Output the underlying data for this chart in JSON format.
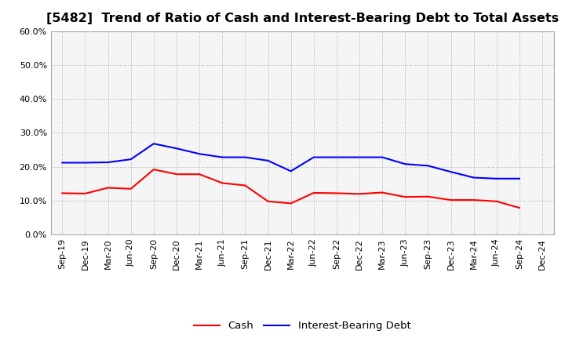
{
  "title": "[5482]  Trend of Ratio of Cash and Interest-Bearing Debt to Total Assets",
  "x_labels": [
    "Sep-19",
    "Dec-19",
    "Mar-20",
    "Jun-20",
    "Sep-20",
    "Dec-20",
    "Mar-21",
    "Jun-21",
    "Sep-21",
    "Dec-21",
    "Mar-22",
    "Jun-22",
    "Sep-22",
    "Dec-22",
    "Mar-23",
    "Jun-23",
    "Sep-23",
    "Dec-23",
    "Mar-24",
    "Jun-24",
    "Sep-24",
    "Dec-24"
  ],
  "cash": [
    0.122,
    0.121,
    0.138,
    0.135,
    0.192,
    0.178,
    0.178,
    0.152,
    0.145,
    0.098,
    0.092,
    0.123,
    0.122,
    0.12,
    0.124,
    0.111,
    0.112,
    0.102,
    0.102,
    0.098,
    0.079,
    null
  ],
  "ibd": [
    0.212,
    0.212,
    0.213,
    0.222,
    0.268,
    0.254,
    0.238,
    0.228,
    0.228,
    0.218,
    0.187,
    0.228,
    0.228,
    0.228,
    0.228,
    0.208,
    0.203,
    0.185,
    0.168,
    0.165,
    0.165,
    null
  ],
  "cash_color": "#ff0000",
  "ibd_color": "#0000ff",
  "ylim": [
    0.0,
    0.6
  ],
  "yticks": [
    0.0,
    0.1,
    0.2,
    0.3,
    0.4,
    0.5,
    0.6
  ],
  "figure_bg": "#ffffff",
  "plot_bg": "#f5f5f5",
  "grid_color": "#aaaaaa",
  "spine_color": "#aaaaaa",
  "title_fontsize": 11.5,
  "tick_fontsize": 8,
  "legend_cash": "Cash",
  "legend_ibd": "Interest-Bearing Debt"
}
